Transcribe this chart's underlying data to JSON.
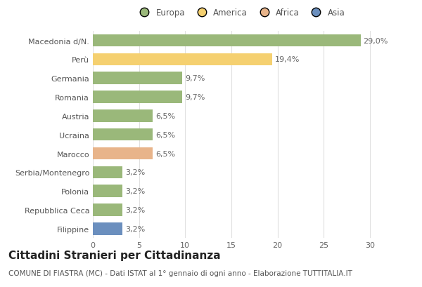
{
  "categories": [
    "Filippine",
    "Repubblica Ceca",
    "Polonia",
    "Serbia/Montenegro",
    "Marocco",
    "Ucraina",
    "Austria",
    "Romania",
    "Germania",
    "Perù",
    "Macedonia d/N."
  ],
  "values": [
    3.2,
    3.2,
    3.2,
    3.2,
    6.5,
    6.5,
    6.5,
    9.7,
    9.7,
    19.4,
    29.0
  ],
  "labels": [
    "3,2%",
    "3,2%",
    "3,2%",
    "3,2%",
    "6,5%",
    "6,5%",
    "6,5%",
    "9,7%",
    "9,7%",
    "19,4%",
    "29,0%"
  ],
  "colors": [
    "#6b8fbe",
    "#9ab87a",
    "#9ab87a",
    "#9ab87a",
    "#e8b48a",
    "#9ab87a",
    "#9ab87a",
    "#9ab87a",
    "#9ab87a",
    "#f5d070",
    "#9ab87a"
  ],
  "legend_labels": [
    "Europa",
    "America",
    "Africa",
    "Asia"
  ],
  "legend_colors": [
    "#9ab87a",
    "#f5d070",
    "#e8b48a",
    "#6b8fbe"
  ],
  "title": "Cittadini Stranieri per Cittadinanza",
  "subtitle": "COMUNE DI FIASTRA (MC) - Dati ISTAT al 1° gennaio di ogni anno - Elaborazione TUTTITALIA.IT",
  "xlim": [
    0,
    32
  ],
  "xticks": [
    0,
    5,
    10,
    15,
    20,
    25,
    30
  ],
  "bg_color": "#ffffff",
  "grid_color": "#e0e0e0",
  "bar_height": 0.65,
  "title_fontsize": 11,
  "subtitle_fontsize": 7.5,
  "tick_fontsize": 8,
  "label_fontsize": 8
}
